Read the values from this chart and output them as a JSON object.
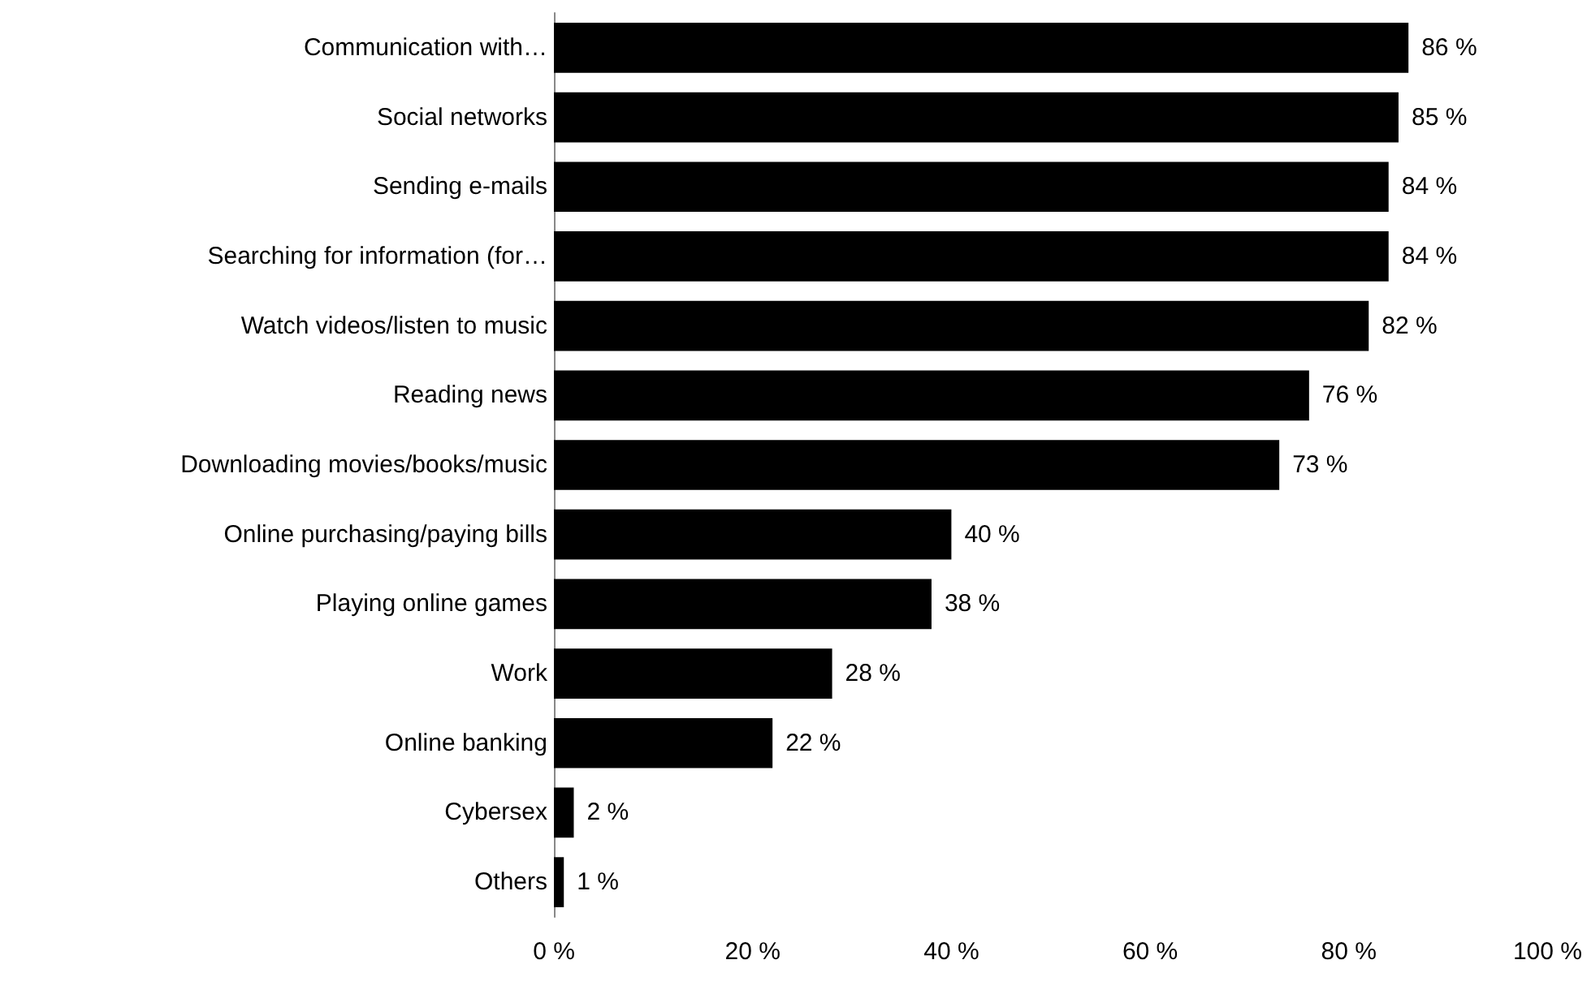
{
  "chart_data": {
    "type": "bar",
    "orientation": "horizontal",
    "categories": [
      "Communication with…",
      "Social networks",
      "Sending e-mails",
      "Searching for information (for…",
      "Watch videos/listen to music",
      "Reading news",
      "Downloading movies/books/music",
      "Online purchasing/paying bills",
      "Playing online games",
      "Work",
      "Online banking",
      "Cybersex",
      "Others"
    ],
    "values": [
      86,
      85,
      84,
      84,
      82,
      76,
      73,
      40,
      38,
      28,
      22,
      2,
      1
    ],
    "value_labels": [
      "86 %",
      "85 %",
      "84 %",
      "84 %",
      "82 %",
      "76 %",
      "73 %",
      "40 %",
      "38 %",
      "28 %",
      "22 %",
      "2 %",
      "1 %"
    ],
    "color": "#000000",
    "xlim": [
      0,
      100
    ],
    "xticks": [
      {
        "value": 0,
        "label": "0 %"
      },
      {
        "value": 20,
        "label": "20 %"
      },
      {
        "value": 40,
        "label": "40 %"
      },
      {
        "value": 60,
        "label": "60 %"
      },
      {
        "value": 80,
        "label": "80 %"
      },
      {
        "value": 100,
        "label": "100 %"
      }
    ],
    "grid": false
  }
}
